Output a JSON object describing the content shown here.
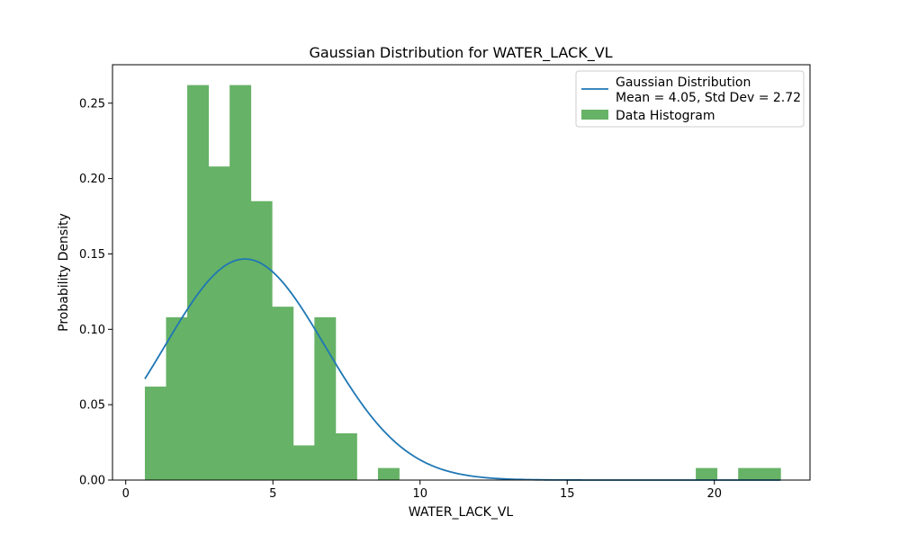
{
  "chart_data": {
    "type": "bar",
    "title": "Gaussian Distribution for WATER_LACK_VL",
    "xlabel": "WATER_LACK_VL",
    "ylabel": "Probability Density",
    "xlim": [
      -0.45,
      23.25
    ],
    "ylim": [
      0,
      0.2755
    ],
    "xticks": [
      0,
      5,
      10,
      15,
      20
    ],
    "yticks": [
      0.0,
      0.05,
      0.1,
      0.15,
      0.2,
      0.25
    ],
    "ytick_labels": [
      "0.00",
      "0.05",
      "0.10",
      "0.15",
      "0.20",
      "0.25"
    ],
    "grid": false,
    "legend_position": "top-right",
    "histogram": {
      "name": "Data Histogram",
      "color": "#66b266",
      "bin_edges": [
        0.65,
        1.37,
        2.09,
        2.81,
        3.53,
        4.25,
        4.97,
        5.69,
        6.41,
        7.13,
        7.85,
        8.57,
        9.29,
        10.01,
        10.73,
        11.45,
        12.17,
        12.89,
        13.61,
        14.33,
        15.05,
        15.77,
        16.49,
        17.21,
        17.93,
        18.65,
        19.37,
        20.09,
        20.81,
        21.53,
        22.25
      ],
      "values": [
        0.062,
        0.108,
        0.262,
        0.208,
        0.262,
        0.185,
        0.115,
        0.023,
        0.108,
        0.031,
        0,
        0.008,
        0,
        0,
        0,
        0,
        0,
        0,
        0,
        0,
        0,
        0,
        0,
        0,
        0,
        0,
        0.008,
        0,
        0.008,
        0.008
      ]
    },
    "series": [
      {
        "name": "Gaussian Distribution",
        "label_line2": "Mean = 4.05, Std Dev = 2.72",
        "type": "line",
        "color": "#1f77b4",
        "mean": 4.05,
        "std": 2.72,
        "x_range": [
          0.65,
          22.25
        ]
      }
    ]
  }
}
